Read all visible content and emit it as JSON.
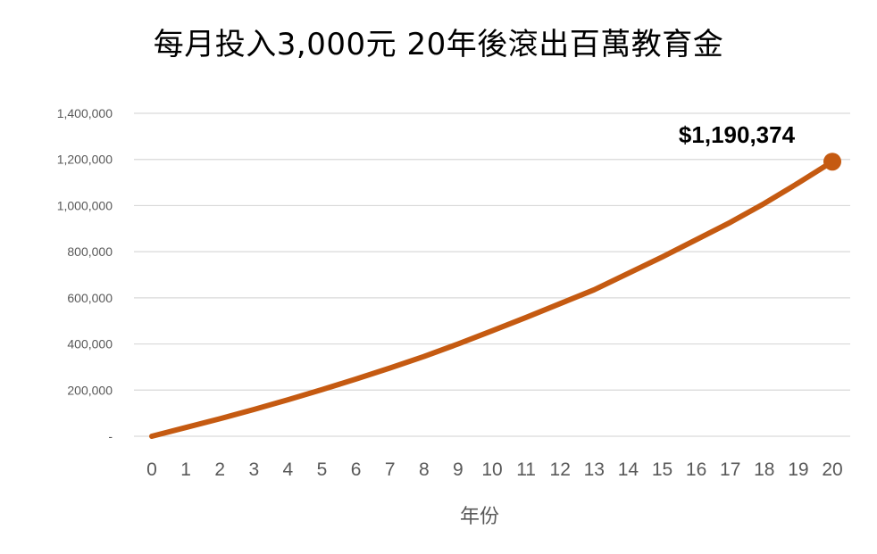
{
  "chart_data": {
    "type": "line",
    "title": "每月投入3,000元 20年後滾出百萬教育金",
    "xlabel": "年份",
    "ylabel": "",
    "x": [
      0,
      1,
      2,
      3,
      4,
      5,
      6,
      7,
      8,
      9,
      10,
      11,
      12,
      13,
      14,
      15,
      16,
      17,
      18,
      19,
      20
    ],
    "series": [
      {
        "values": [
          0,
          38000,
          76000,
          116000,
          158000,
          202000,
          248000,
          296000,
          346000,
          400000,
          457000,
          515000,
          575000,
          635000,
          706000,
          777000,
          852000,
          927000,
          1009000,
          1098000,
          1190374
        ],
        "color": "#C55A11"
      }
    ],
    "ylim": [
      0,
      1400000
    ],
    "yticks": [
      0,
      200000,
      400000,
      600000,
      800000,
      1000000,
      1200000,
      1400000
    ],
    "ytick_labels": [
      "-",
      "200,000",
      "400,000",
      "600,000",
      "800,000",
      "1,000,000",
      "1,200,000",
      "1,400,000"
    ],
    "end_label": "$1,190,374",
    "grid": true,
    "legend": "none"
  }
}
